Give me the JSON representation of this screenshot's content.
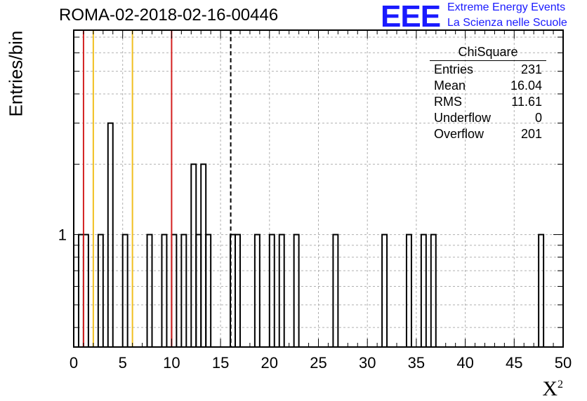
{
  "header": {
    "title": "ROMA-02-2018-02-16-00446",
    "logo_text": "EEE",
    "subtitle_line1": "Extreme Energy Events",
    "subtitle_line2": "La Scienza nelle Scuole",
    "brand_color": "#1a1aff"
  },
  "stats": {
    "name": "ChiSquare",
    "rows": [
      {
        "label": "Entries",
        "value": "231"
      },
      {
        "label": "Mean",
        "value": "16.04"
      },
      {
        "label": "RMS",
        "value": "11.61"
      },
      {
        "label": "Underflow",
        "value": "0"
      },
      {
        "label": "Overflow",
        "value": "201"
      }
    ]
  },
  "chart_data": {
    "type": "bar",
    "title": "ROMA-02-2018-02-16-00446",
    "xlabel": "X",
    "xlabel_superscript": "2",
    "ylabel": "Entries/bin",
    "xlim": [
      0,
      50
    ],
    "ylim": [
      0.33,
      7.5
    ],
    "yscale": "log",
    "grid": true,
    "bin_width": 0.5,
    "xticks": [
      "0",
      "5",
      "10",
      "15",
      "20",
      "25",
      "30",
      "35",
      "40",
      "45",
      "50"
    ],
    "ytick_labels": [
      "1"
    ],
    "bins": [
      {
        "x": 0.5,
        "y": 1
      },
      {
        "x": 1.0,
        "y": 1
      },
      {
        "x": 2.5,
        "y": 1
      },
      {
        "x": 3.5,
        "y": 3
      },
      {
        "x": 5.0,
        "y": 1
      },
      {
        "x": 7.5,
        "y": 1
      },
      {
        "x": 9.0,
        "y": 1
      },
      {
        "x": 10.0,
        "y": 1
      },
      {
        "x": 11.0,
        "y": 1
      },
      {
        "x": 12.0,
        "y": 2
      },
      {
        "x": 12.5,
        "y": 1
      },
      {
        "x": 13.0,
        "y": 2
      },
      {
        "x": 13.5,
        "y": 1
      },
      {
        "x": 16.0,
        "y": 1
      },
      {
        "x": 16.5,
        "y": 1
      },
      {
        "x": 18.5,
        "y": 1
      },
      {
        "x": 20.0,
        "y": 1
      },
      {
        "x": 21.0,
        "y": 1
      },
      {
        "x": 22.5,
        "y": 1
      },
      {
        "x": 26.5,
        "y": 1
      },
      {
        "x": 31.5,
        "y": 1
      },
      {
        "x": 34.0,
        "y": 1
      },
      {
        "x": 35.5,
        "y": 1
      },
      {
        "x": 36.5,
        "y": 1
      },
      {
        "x": 47.5,
        "y": 1
      }
    ],
    "vertical_lines": [
      {
        "x": 1,
        "color": "#d42020",
        "style": "solid"
      },
      {
        "x": 2,
        "color": "#f0c020",
        "style": "solid"
      },
      {
        "x": 6,
        "color": "#f0c020",
        "style": "solid"
      },
      {
        "x": 10,
        "color": "#d42020",
        "style": "solid"
      },
      {
        "x": 16.04,
        "color": "#000000",
        "style": "dashed"
      }
    ]
  }
}
